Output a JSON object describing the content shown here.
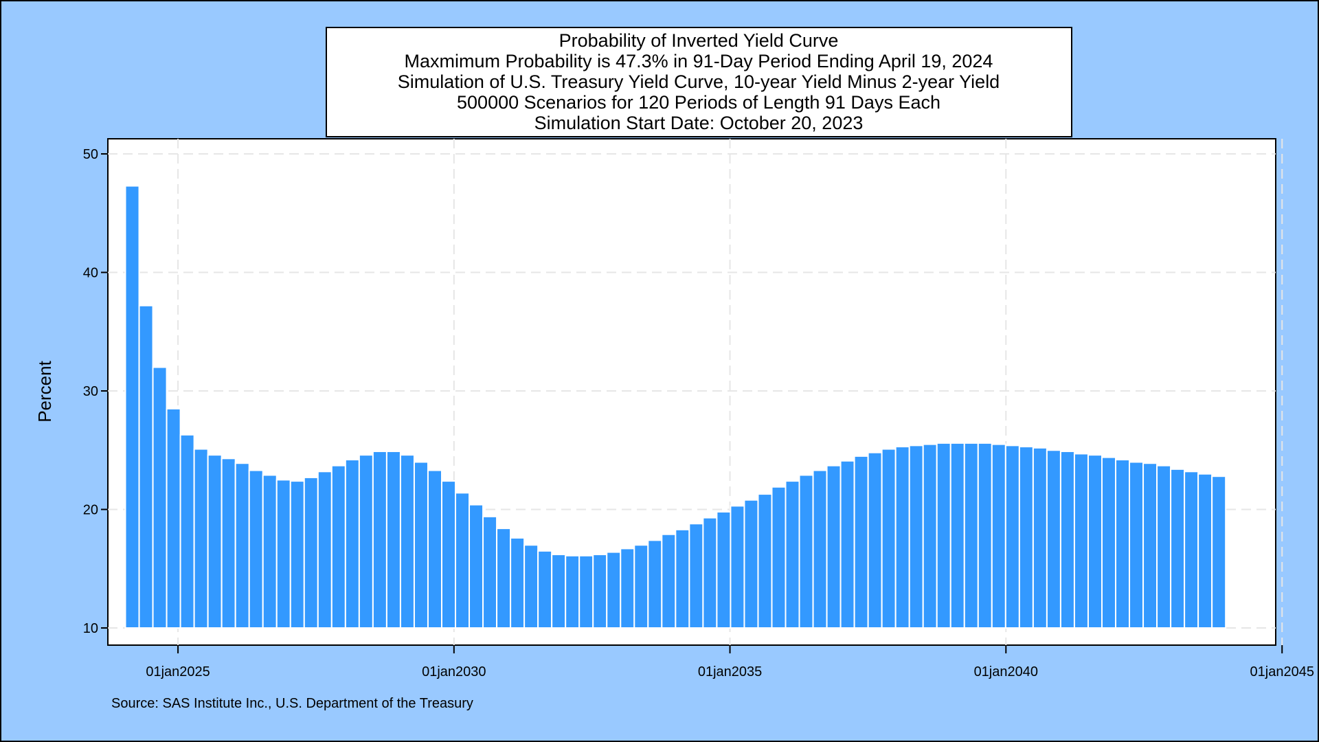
{
  "colors": {
    "background": "#99c9ff",
    "plot_background": "#ffffff",
    "bar_fill": "#3399ff",
    "bar_outline": "#ffffff",
    "grid": "#e6e6e6",
    "axis": "#000000"
  },
  "title_lines": [
    "Probability of Inverted Yield Curve",
    "Maxmimum Probability is 47.3% in 91-Day Period Ending April 19, 2024",
    "Simulation of U.S. Treasury Yield Curve, 10-year Yield Minus 2-year Yield",
    "500000 Scenarios for 120 Periods of Length 91 Days Each",
    "Simulation Start Date: October 20, 2023"
  ],
  "footnote": "Source: SAS Institute Inc., U.S. Department of the Treasury",
  "chart_data": {
    "type": "bar",
    "title": "Probability of Inverted Yield Curve",
    "ylabel": "Percent",
    "xlabel": "",
    "ylim": [
      10,
      50
    ],
    "yticks": [
      10,
      20,
      30,
      40,
      50
    ],
    "y_tick_labels": [
      "10",
      "20",
      "30",
      "40",
      "50"
    ],
    "xlim": [
      "2023-09-25",
      "2044-11-20"
    ],
    "xticks": [
      "2025-01-01",
      "2030-01-01",
      "2035-01-01",
      "2040-01-01",
      "2045-01-01"
    ],
    "x_tick_labels": [
      "01jan2025",
      "01jan2030",
      "01jan2035",
      "01jan2040",
      "01jan2045"
    ],
    "grid": true,
    "grid_style": "dashed",
    "period_end_dates": [
      "2024-04-19",
      "2024-07-19",
      "2024-10-18",
      "2025-01-17",
      "2025-04-18",
      "2025-07-18",
      "2025-10-17",
      "2026-01-16",
      "2026-04-17",
      "2026-07-17",
      "2026-10-16",
      "2027-01-15",
      "2027-04-16",
      "2027-07-16",
      "2027-10-15",
      "2028-01-14",
      "2028-04-14",
      "2028-07-14",
      "2028-10-13",
      "2029-01-12",
      "2029-04-13",
      "2029-07-13",
      "2029-10-12",
      "2030-01-11",
      "2030-04-12",
      "2030-07-12",
      "2030-10-11",
      "2031-01-10",
      "2031-04-11",
      "2031-07-11",
      "2031-10-10",
      "2032-01-09",
      "2032-04-09",
      "2032-07-09",
      "2032-10-08",
      "2033-01-07",
      "2033-04-08",
      "2033-07-08",
      "2033-10-07",
      "2034-01-06",
      "2034-04-07",
      "2034-07-07",
      "2034-10-06",
      "2035-01-05",
      "2035-04-06",
      "2035-07-06",
      "2035-10-05",
      "2036-01-04",
      "2036-04-04",
      "2036-07-04",
      "2036-10-03",
      "2037-01-02",
      "2037-04-03",
      "2037-07-03",
      "2037-10-02",
      "2038-01-01",
      "2038-04-02",
      "2038-07-02",
      "2038-10-01",
      "2038-12-31",
      "2039-04-01",
      "2039-07-01",
      "2039-09-30",
      "2039-12-30",
      "2040-03-30",
      "2040-06-29",
      "2040-09-28",
      "2040-12-28",
      "2041-03-29",
      "2041-06-28",
      "2041-09-27",
      "2041-12-27",
      "2042-03-28",
      "2042-06-27",
      "2042-09-26",
      "2042-12-26",
      "2043-03-27",
      "2043-06-26",
      "2043-09-25",
      "2043-12-25"
    ],
    "values": [
      47.3,
      37.2,
      32.0,
      28.5,
      26.3,
      25.1,
      24.6,
      24.3,
      23.9,
      23.3,
      22.9,
      22.5,
      22.4,
      22.7,
      23.2,
      23.7,
      24.2,
      24.6,
      24.9,
      24.9,
      24.6,
      24.0,
      23.3,
      22.4,
      21.4,
      20.4,
      19.4,
      18.4,
      17.6,
      17.0,
      16.5,
      16.2,
      16.1,
      16.1,
      16.2,
      16.4,
      16.7,
      17.0,
      17.4,
      17.9,
      18.3,
      18.8,
      19.3,
      19.8,
      20.3,
      20.8,
      21.3,
      21.9,
      22.4,
      22.9,
      23.3,
      23.7,
      24.1,
      24.5,
      24.8,
      25.1,
      25.3,
      25.4,
      25.5,
      25.6,
      25.6,
      25.6,
      25.6,
      25.5,
      25.4,
      25.3,
      25.2,
      25.0,
      24.9,
      24.7,
      24.6,
      24.4,
      24.2,
      24.0,
      23.9,
      23.7,
      23.4,
      23.2,
      23.0,
      22.8
    ]
  }
}
